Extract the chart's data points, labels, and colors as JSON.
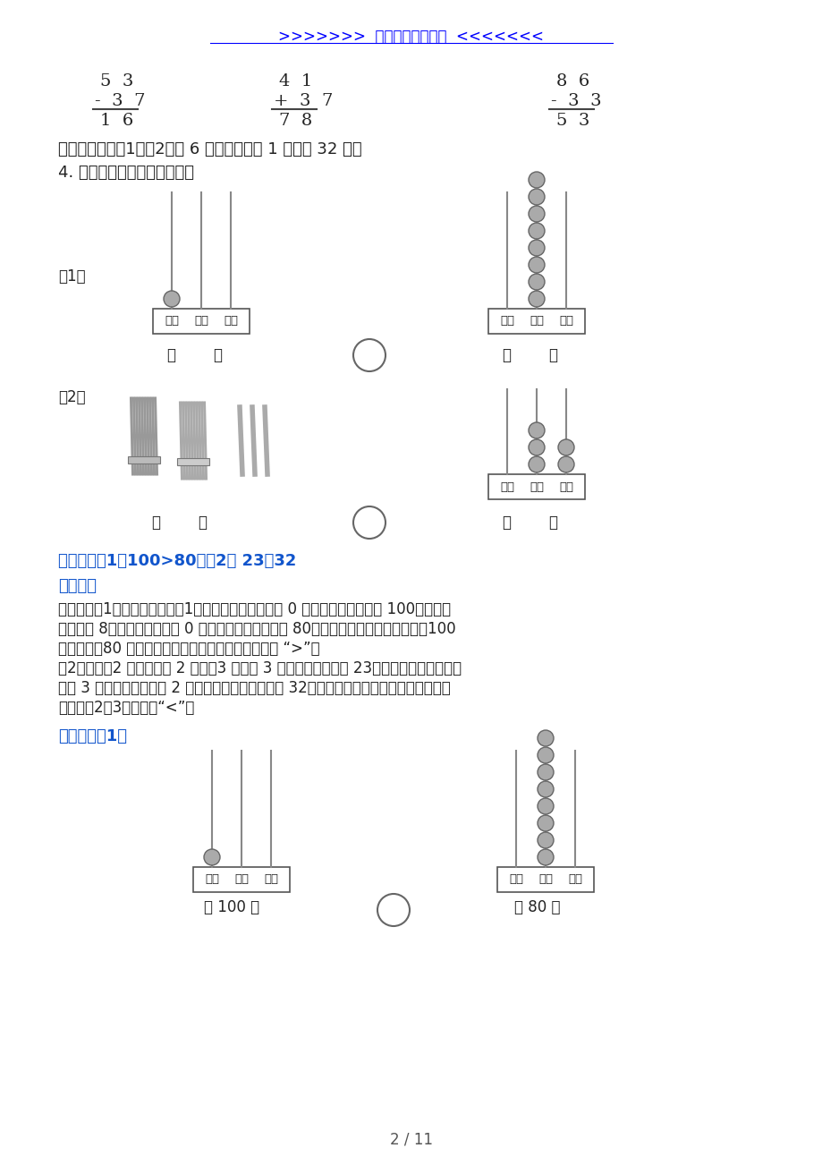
{
  "title": ">>>>>>>  历年考试真题汇总  <<<<<<<",
  "title_color": "blue",
  "bg_color": "#ffffff",
  "page_num": "2 / 11",
  "col1_top": "5  3",
  "col1_op": "-  3  7",
  "col1_res": "1  6",
  "col2_top": "4  1",
  "col2_op": "+  3  7",
  "col2_res": "7  8",
  "col3_top": "8  6",
  "col3_op": "-  3  3",
  "col3_res": "5  3",
  "section3_text": "三、填空。（第1和第2每题 6 分，其它每空 1 分，共 32 分）",
  "q4_text": "4. 看图填数，并比一比大小。",
  "q1_label": "（1）",
  "q2_label": "（2）",
  "bai": "百位",
  "shi": "十位",
  "ge": "个位",
  "answer_text": "【答案】（1）100>80；（2） 23＜32",
  "analysis_title": "【解析】",
  "fen_xi": "【分析】",
  "analysis_line1": "（1）图一：百位上是1，其它数位上没有数用 0 占位，因此这个数是 100，图二：",
  "analysis_line2": "十位上是 8，个位上没有数用 0 占位，因此这个数就是 80，直接比较数位的多少即可，100",
  "analysis_line3": "是三位数，80 是两位数，三位数大于两位数，因此填 “>”；",
  "analysis_line4": "（2）图一：2 捆小棒表示 2 个十，3 根表示 3 个一，合起来就是 23；图二：计数器上十位",
  "analysis_line5": "上有 3 颗珠子，个位上有 2 颗珠子，因此这个数就是 32，直接比较最高位上数的大小即可，",
  "analysis_line6": "十位上的2＜3，因此填“<”。",
  "detail_label": "【详解】（1）",
  "detail_ans1": "（ 100 ）",
  "detail_ans2": "（ 80 ）",
  "detail_cmp": ">",
  "answer_color": "#1155cc",
  "text_color": "#222222",
  "rod_color": "#888888",
  "bead_color": "#aaaaaa",
  "bead_edge": "#666666",
  "frame_color": "#555555"
}
